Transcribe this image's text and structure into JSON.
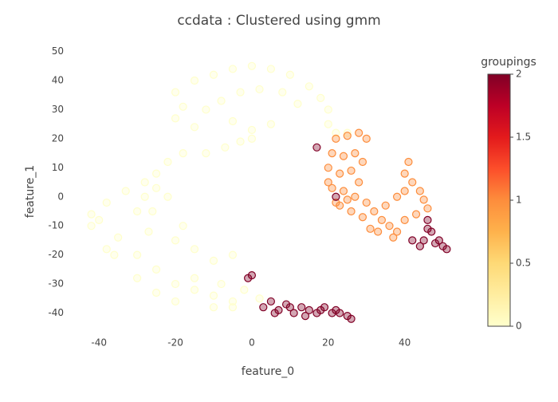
{
  "chart_data": {
    "type": "scatter",
    "title": "ccdata : Clustered using gmm",
    "x_label": "feature_0",
    "y_label": "feature_1",
    "xlim": [
      -44,
      53
    ],
    "xticks": [
      -40,
      -20,
      0,
      20,
      40
    ],
    "ylim": [
      -47,
      54
    ],
    "yticks": [
      -40,
      -30,
      -20,
      -10,
      0,
      10,
      20,
      30,
      40,
      50
    ],
    "colorbar": {
      "title": "groupings",
      "lim": [
        0,
        2
      ],
      "ticks": [
        0,
        0.5,
        1,
        1.5,
        2
      ],
      "colorscale": [
        [
          0,
          "#ffffcc"
        ],
        [
          0.125,
          "#ffeda0"
        ],
        [
          0.25,
          "#fed976"
        ],
        [
          0.375,
          "#feb24c"
        ],
        [
          0.5,
          "#fd8d3c"
        ],
        [
          0.625,
          "#fc4e2a"
        ],
        [
          0.75,
          "#e31a1c"
        ],
        [
          0.875,
          "#bd0026"
        ],
        [
          1,
          "#800026"
        ]
      ]
    },
    "x": [
      -5,
      -10,
      -15,
      -20,
      -25,
      -30,
      -35,
      -40,
      -42,
      -38,
      -33,
      -28,
      -25,
      -22,
      -26,
      -20,
      -15,
      -10,
      -5,
      -25,
      -22,
      -18,
      -12,
      -7,
      -3,
      0,
      -15,
      -18,
      -20,
      -15,
      -10,
      -5,
      0,
      5,
      10,
      15,
      18,
      20,
      20,
      22,
      25,
      -20,
      -12,
      -8,
      -3,
      2,
      8,
      12,
      5,
      0,
      -5,
      -30,
      -25,
      -20,
      -10,
      -5,
      -36,
      -42,
      -38,
      -15,
      -8,
      -2,
      2,
      -27,
      -18,
      -28,
      -30,
      22,
      25,
      28,
      30,
      21,
      24,
      27,
      29,
      20,
      23,
      26,
      28,
      21,
      24,
      27,
      30,
      23,
      26,
      29,
      32,
      34,
      36,
      33,
      38,
      40,
      41,
      40,
      42,
      44,
      45,
      46,
      43,
      40,
      38,
      35,
      25,
      22,
      20,
      31,
      37,
      3,
      5,
      7,
      9,
      11,
      13,
      15,
      17,
      19,
      21,
      23,
      25,
      26,
      6,
      10,
      14,
      18,
      22,
      0,
      -1,
      46,
      47,
      45,
      48,
      50,
      51,
      42,
      44,
      46,
      49,
      17,
      22
    ],
    "y": [
      -36,
      -34,
      -32,
      -30,
      -25,
      -20,
      -14,
      -8,
      -6,
      -2,
      2,
      5,
      3,
      0,
      -5,
      -15,
      -18,
      -22,
      -20,
      8,
      12,
      15,
      15,
      17,
      19,
      20,
      24,
      31,
      36,
      40,
      42,
      44,
      45,
      44,
      42,
      38,
      34,
      30,
      25,
      22,
      22,
      27,
      30,
      33,
      36,
      37,
      36,
      32,
      25,
      23,
      26,
      -28,
      -33,
      -36,
      -38,
      -38,
      -20,
      -10,
      -18,
      -28,
      -30,
      -32,
      -35,
      -12,
      -10,
      0,
      -5,
      20,
      21,
      22,
      20,
      15,
      14,
      15,
      12,
      10,
      8,
      9,
      5,
      3,
      2,
      0,
      -2,
      -3,
      -5,
      -7,
      -5,
      -8,
      -10,
      -12,
      -12,
      -8,
      12,
      8,
      5,
      2,
      -1,
      -4,
      -6,
      2,
      0,
      -3,
      -1,
      -2,
      5,
      -11,
      -14,
      -38,
      -36,
      -39,
      -37,
      -40,
      -38,
      -39,
      -40,
      -38,
      -40,
      -40,
      -41,
      -42,
      -40,
      -38,
      -41,
      -39,
      -39,
      -27,
      -28,
      -8,
      -12,
      -15,
      -16,
      -17,
      -18,
      -15,
      -17,
      -11,
      -15,
      17,
      0
    ],
    "groups": [
      0,
      0,
      0,
      0,
      0,
      0,
      0,
      0,
      0,
      0,
      0,
      0,
      0,
      0,
      0,
      0,
      0,
      0,
      0,
      0,
      0,
      0,
      0,
      0,
      0,
      0,
      0,
      0,
      0,
      0,
      0,
      0,
      0,
      0,
      0,
      0,
      0,
      0,
      0,
      0,
      0,
      0,
      0,
      0,
      0,
      0,
      0,
      0,
      0,
      0,
      0,
      0,
      0,
      0,
      0,
      0,
      0,
      0,
      0,
      0,
      0,
      0,
      0,
      0,
      0,
      0,
      0,
      1,
      1,
      1,
      1,
      1,
      1,
      1,
      1,
      1,
      1,
      1,
      1,
      1,
      1,
      1,
      1,
      1,
      1,
      1,
      1,
      1,
      1,
      1,
      1,
      1,
      1,
      1,
      1,
      1,
      1,
      1,
      1,
      1,
      1,
      1,
      1,
      1,
      1,
      1,
      1,
      2,
      2,
      2,
      2,
      2,
      2,
      2,
      2,
      2,
      2,
      2,
      2,
      2,
      2,
      2,
      2,
      2,
      2,
      2,
      2,
      2,
      2,
      2,
      2,
      2,
      2,
      2,
      2,
      2,
      2,
      2,
      2
    ]
  }
}
